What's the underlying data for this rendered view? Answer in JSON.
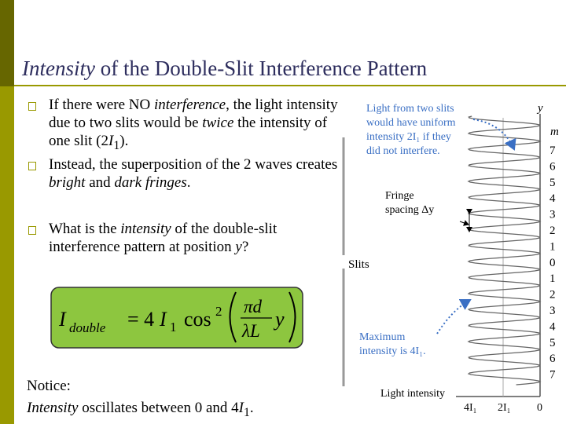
{
  "title": {
    "italic": "Intensity",
    "rest": " of the Double-Slit Interference Pattern"
  },
  "bullets": [
    [
      {
        "text": "If there were NO "
      },
      {
        "text": "interference",
        "italic": true
      },
      {
        "text": ", the light intensity due to two slits would be "
      },
      {
        "text": "twice",
        "italic": true
      },
      {
        "text": " the intensity of one slit (2"
      },
      {
        "text": "I",
        "italic": true
      },
      {
        "text": "1",
        "sub": true
      },
      {
        "text": ")."
      }
    ],
    [
      {
        "text": "Instead, the superposition of the 2 waves creates "
      },
      {
        "text": "bright",
        "italic": true
      },
      {
        "text": " and "
      },
      {
        "text": "dark fringes",
        "italic": true
      },
      {
        "text": "."
      }
    ],
    [
      {
        "text": "What is the "
      },
      {
        "text": "intensity",
        "italic": true
      },
      {
        "text": " of the double-slit interference pattern at position "
      },
      {
        "text": "y",
        "italic": true
      },
      {
        "text": "?"
      }
    ]
  ],
  "formula": {
    "lhs": "I",
    "lhs_sub": "double",
    "eq": "= 4",
    "i": "I",
    "i_sub": "1",
    "cos": "cos",
    "pow": "2",
    "num": "πd",
    "den": "λL",
    "y": "y"
  },
  "notice": {
    "line1": "Notice:",
    "italic": "Intensity",
    "rest": " oscillates between 0 and 4",
    "i": "I",
    "sub": "1",
    "end": "."
  },
  "figure": {
    "note1": [
      "Light from two slits",
      "would have uniform",
      "intensity 2I₁ if they",
      "did not interfere."
    ],
    "fringe": [
      "Fringe",
      "spacing Δy"
    ],
    "note2": [
      "Maximum",
      "intensity is 4I₁."
    ],
    "slits": "Slits",
    "xlabel": "Light intensity",
    "xticks": [
      "4I₁",
      "2I₁",
      "0"
    ],
    "y": "y",
    "m": "m",
    "m_labels": [
      7,
      6,
      5,
      4,
      3,
      2,
      1,
      0,
      1,
      2,
      3,
      4,
      5,
      6,
      7
    ]
  }
}
